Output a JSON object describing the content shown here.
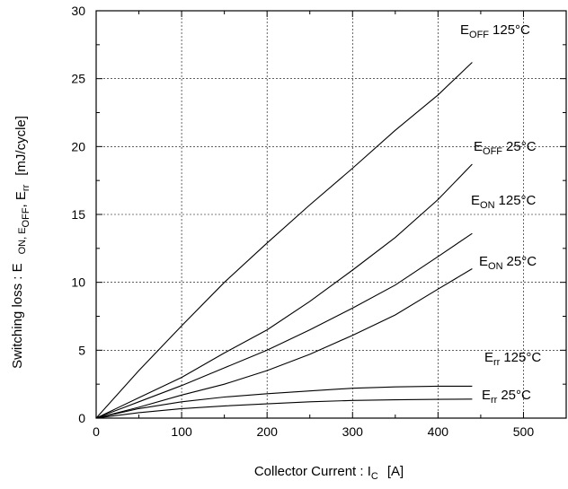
{
  "chart_data": {
    "type": "line",
    "xlabel": "Collector Current : I",
    "xlabel_sub": "C",
    "xlabel_unit": "[A]",
    "ylabel": "Switching loss :  E",
    "ylabel_rest": "ON, E",
    "ylabel_sub2": "OFF",
    "ylabel_sep": ", E",
    "ylabel_sub3": "rr",
    "ylabel_unit": "[mJ/cycle]",
    "xlim": [
      0,
      550
    ],
    "ylim": [
      0,
      30
    ],
    "xticks": [
      0,
      100,
      200,
      300,
      400,
      500
    ],
    "yticks": [
      0,
      5,
      10,
      15,
      20,
      25,
      30
    ],
    "grid": true,
    "series": [
      {
        "name": "E_OFF 125°C",
        "label_main": "E",
        "label_sub": "OFF",
        "label_temp": "125°C",
        "x": [
          0,
          50,
          100,
          150,
          200,
          250,
          300,
          350,
          400,
          440
        ],
        "y": [
          0,
          3.5,
          6.8,
          10.0,
          12.9,
          15.7,
          18.4,
          21.2,
          23.8,
          26.2
        ]
      },
      {
        "name": "E_OFF 25°C",
        "label_main": "E",
        "label_sub": "OFF",
        "label_temp": "25°C",
        "x": [
          0,
          50,
          100,
          150,
          200,
          250,
          300,
          350,
          400,
          440
        ],
        "y": [
          0,
          1.5,
          3.0,
          4.8,
          6.5,
          8.6,
          10.9,
          13.3,
          16.1,
          18.7
        ]
      },
      {
        "name": "E_ON 125°C",
        "label_main": "E",
        "label_sub": "ON",
        "label_temp": "125°C",
        "x": [
          0,
          50,
          100,
          150,
          200,
          250,
          300,
          350,
          400,
          440
        ],
        "y": [
          0,
          1.2,
          2.4,
          3.7,
          5.0,
          6.5,
          8.1,
          9.8,
          11.9,
          13.6
        ]
      },
      {
        "name": "E_ON 25°C",
        "label_main": "E",
        "label_sub": "ON",
        "label_temp": "25°C",
        "x": [
          0,
          50,
          100,
          150,
          200,
          250,
          300,
          350,
          400,
          440
        ],
        "y": [
          0,
          0.8,
          1.7,
          2.5,
          3.5,
          4.7,
          6.1,
          7.6,
          9.5,
          11.0
        ]
      },
      {
        "name": "E_rr 125°C",
        "label_main": "E",
        "label_sub": "rr",
        "label_temp": "125°C",
        "x": [
          0,
          50,
          100,
          150,
          200,
          250,
          300,
          350,
          400,
          440
        ],
        "y": [
          0,
          0.7,
          1.2,
          1.55,
          1.8,
          2.0,
          2.2,
          2.3,
          2.35,
          2.35
        ]
      },
      {
        "name": "E_rr 25°C",
        "label_main": "E",
        "label_sub": "rr",
        "label_temp": "25°C",
        "x": [
          0,
          50,
          100,
          150,
          200,
          250,
          300,
          350,
          400,
          440
        ],
        "y": [
          0,
          0.4,
          0.7,
          0.9,
          1.05,
          1.2,
          1.3,
          1.35,
          1.38,
          1.4
        ]
      }
    ]
  }
}
